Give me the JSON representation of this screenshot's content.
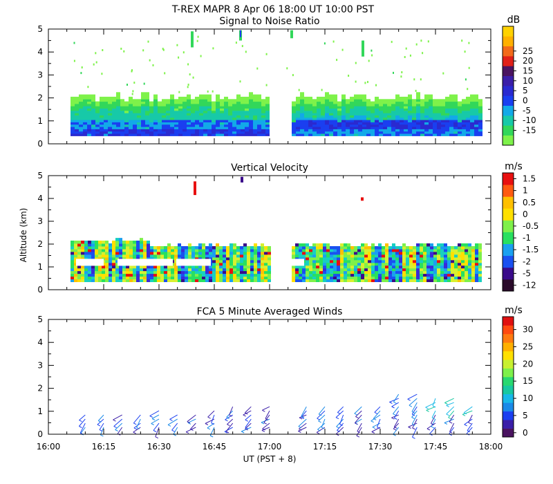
{
  "figure_title": "T-REX   MAPR   8 Apr 06   18:00 UT   10:00   PST",
  "colors": {
    "snr_scale": [
      "#7ef24a",
      "#32d75a",
      "#17c9a8",
      "#12a9e8",
      "#1a3ff0",
      "#2a2ad0",
      "#3b1ea8",
      "#4a1360",
      "#e02018",
      "#f26a1a",
      "#ffb000",
      "#ffd200"
    ],
    "vel_scale": [
      "#2a0a2a",
      "#3a0a8a",
      "#3a2ad8",
      "#1a50f0",
      "#1aa0f0",
      "#18d0c0",
      "#28e060",
      "#7ef04a",
      "#d8f030",
      "#ffe000",
      "#ffc000",
      "#ff9000",
      "#ff5a10",
      "#e81010"
    ],
    "wind_scale": [
      "#4a1360",
      "#3a1ea8",
      "#1a3ff0",
      "#1a8ae8",
      "#18b8e8",
      "#18c8a0",
      "#28d870",
      "#7ef04a",
      "#c8f030",
      "#ffe000",
      "#ffb000",
      "#ff7a10",
      "#ff4a10",
      "#e01010"
    ]
  },
  "chart_data": [
    {
      "type": "heatmap",
      "title": "Signal to Noise Ratio",
      "units": "dB",
      "xlim": [
        "16:00",
        "18:00"
      ],
      "ylim": [
        0,
        5
      ],
      "y_ticks": [
        "0",
        "1",
        "2",
        "3",
        "4",
        "5"
      ],
      "colorbar_labels": [
        "-15",
        "-10",
        "-5",
        "0",
        "5",
        "10",
        "15",
        "20",
        "25"
      ],
      "data_gap": [
        "17:00",
        "17:06"
      ],
      "data_bottom_km": 0.35,
      "layers": [
        {
          "band": "top",
          "km": 2.0,
          "snr_db": -15
        },
        {
          "band": "upper",
          "km": 1.7,
          "snr_db": -10
        },
        {
          "band": "middle",
          "km": 1.3,
          "snr_db": -5
        },
        {
          "band": "lower",
          "km": 0.9,
          "snr_db": 0
        },
        {
          "band": "surface",
          "km": 0.5,
          "snr_db": 5
        }
      ]
    },
    {
      "type": "heatmap",
      "title": "Vertical Velocity",
      "units": "m/s",
      "xlim": [
        "16:00",
        "18:00"
      ],
      "ylim": [
        0,
        5
      ],
      "y_ticks": [
        "0",
        "1",
        "2",
        "3",
        "4",
        "5"
      ],
      "ylabel": "Altitude (km)",
      "colorbar_labels": [
        "-12",
        "-5",
        "-2",
        "-1.5",
        "-1",
        "-0.5",
        "0",
        "0.5",
        "1",
        "1.5"
      ],
      "data_gap": [
        "17:00",
        "17:06"
      ],
      "data_top_km": 1.9,
      "data_bottom_km": 0.35
    },
    {
      "type": "barbs",
      "title": "FCA 5 Minute Averaged Winds",
      "units": "m/s",
      "xlim": [
        "16:00",
        "18:00"
      ],
      "ylim": [
        0,
        5
      ],
      "y_ticks": [
        "0",
        "1",
        "2",
        "3",
        "4",
        "5"
      ],
      "xlabel": "UT   (PST + 8)",
      "x_ticks": [
        "16:00",
        "16:15",
        "16:30",
        "16:45",
        "17:00",
        "17:15",
        "17:30",
        "17:45",
        "18:00"
      ],
      "colorbar_labels": [
        "0",
        "5",
        "10",
        "15",
        "20",
        "25",
        "30"
      ],
      "profile_times_min": [
        10,
        15,
        20,
        25,
        30,
        35,
        40,
        45,
        50,
        55,
        60,
        70,
        75,
        80,
        85,
        90,
        95,
        100,
        105,
        110,
        115
      ],
      "max_height_km": [
        0.9,
        0.9,
        0.9,
        0.9,
        1.1,
        0.9,
        0.9,
        1.1,
        1.3,
        1.3,
        1.2,
        1.3,
        1.2,
        1.3,
        1.3,
        1.3,
        1.8,
        1.9,
        1.6,
        1.6,
        1.3
      ]
    }
  ]
}
